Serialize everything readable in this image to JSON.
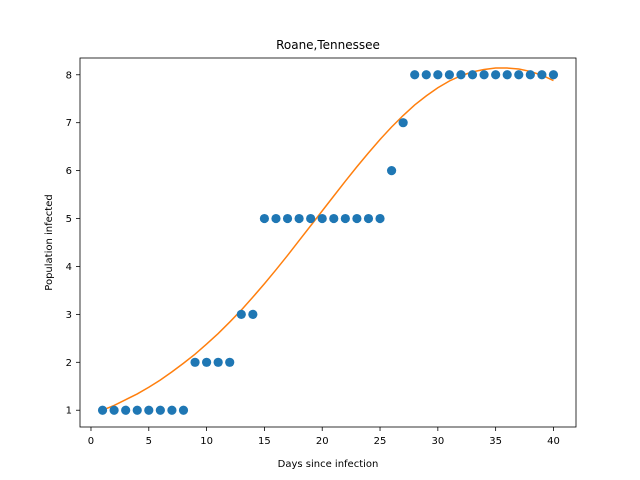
{
  "chart_data": {
    "type": "scatter",
    "title": "Roane,Tennessee",
    "xlabel": "Days since infection",
    "ylabel": "Population infected",
    "xlim": [
      -0.95,
      41.95
    ],
    "ylim": [
      0.65,
      8.35
    ],
    "xticks": [
      0,
      5,
      10,
      15,
      20,
      25,
      30,
      35,
      40
    ],
    "yticks": [
      1,
      2,
      3,
      4,
      5,
      6,
      7,
      8
    ],
    "grid": false,
    "colors": {
      "points": "#1f77b4",
      "fit": "#ff7f0e"
    },
    "series": [
      {
        "kind": "points",
        "x": [
          1,
          2,
          3,
          4,
          5,
          6,
          7,
          8,
          9,
          10,
          11,
          12,
          13,
          14,
          15,
          16,
          17,
          18,
          19,
          20,
          21,
          22,
          23,
          24,
          25,
          26,
          27,
          28,
          29,
          30,
          31,
          32,
          33,
          34,
          35,
          36,
          37,
          38,
          39,
          40
        ],
        "y": [
          1,
          1,
          1,
          1,
          1,
          1,
          1,
          1,
          2,
          2,
          2,
          2,
          3,
          3,
          5,
          5,
          5,
          5,
          5,
          5,
          5,
          5,
          5,
          5,
          5,
          6,
          7,
          8,
          8,
          8,
          8,
          8,
          8,
          8,
          8,
          8,
          8,
          8,
          8,
          8
        ]
      },
      {
        "kind": "line",
        "x": [
          1,
          2,
          3,
          4,
          5,
          6,
          7,
          8,
          9,
          10,
          11,
          12,
          13,
          14,
          15,
          16,
          17,
          18,
          19,
          20,
          21,
          22,
          23,
          24,
          25,
          26,
          27,
          28,
          29,
          30,
          31,
          32,
          33,
          34,
          35,
          36,
          37,
          38,
          39,
          40
        ],
        "y": [
          1.0,
          1.1,
          1.22,
          1.34,
          1.48,
          1.63,
          1.8,
          1.98,
          2.17,
          2.38,
          2.6,
          2.84,
          3.09,
          3.36,
          3.64,
          3.93,
          4.23,
          4.54,
          4.85,
          5.16,
          5.47,
          5.78,
          6.08,
          6.37,
          6.65,
          6.91,
          7.15,
          7.37,
          7.56,
          7.73,
          7.87,
          7.98,
          8.06,
          8.11,
          8.14,
          8.14,
          8.12,
          8.07,
          7.99,
          7.88
        ]
      }
    ]
  }
}
